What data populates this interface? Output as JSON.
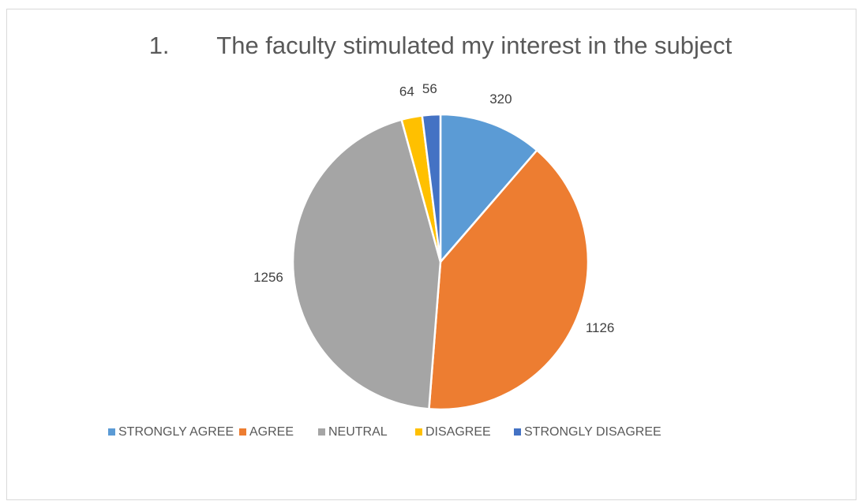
{
  "chart_data": {
    "type": "pie",
    "title": "1.       The faculty stimulated my interest in the subject",
    "categories": [
      "STRONGLY AGREE",
      "AGREE",
      "NEUTRAL",
      "DISAGREE",
      "STRONGLY DISAGREE"
    ],
    "values": [
      320,
      1126,
      1256,
      64,
      56
    ],
    "colors": [
      "#5b9bd5",
      "#ed7d31",
      "#a5a5a5",
      "#ffc000",
      "#4472c4"
    ],
    "legend": "bottom"
  }
}
